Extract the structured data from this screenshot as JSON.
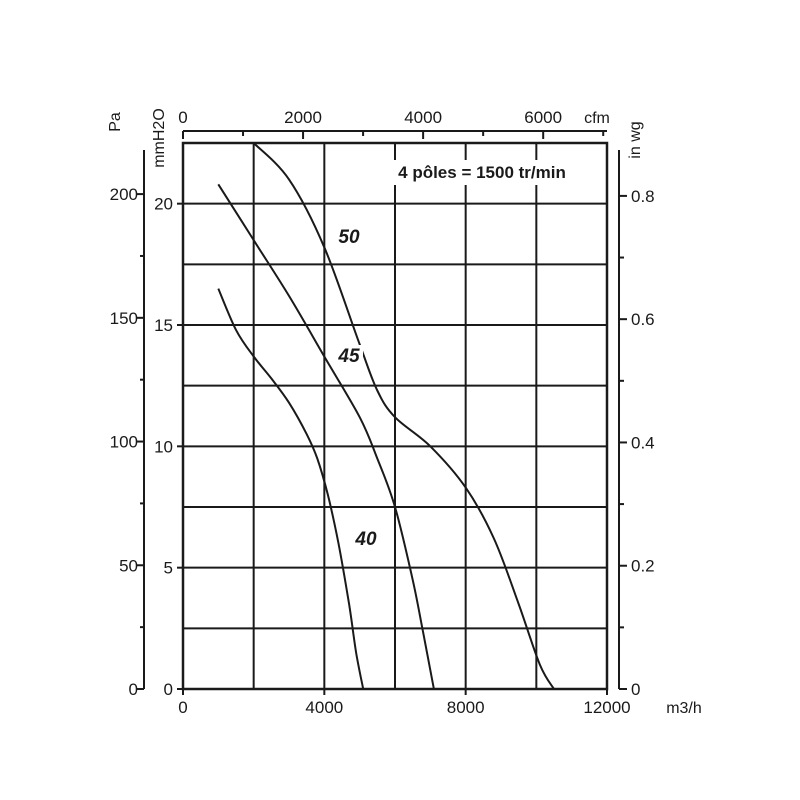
{
  "chart_data": {
    "type": "line",
    "annotation": "4 pôles = 1500 tr/min",
    "x_axis": {
      "unit": "m3/h",
      "range": [
        0,
        12000
      ],
      "ticks": [
        0,
        4000,
        8000,
        12000
      ],
      "tick_labels": [
        "0",
        "4000",
        "8000",
        "12000"
      ]
    },
    "x2_axis": {
      "unit": "cfm",
      "ticks": [
        0,
        2000,
        4000,
        6000
      ],
      "tick_labels": [
        "0",
        "2000",
        "4000",
        "6000"
      ]
    },
    "y_axis_mmh2o": {
      "unit": "mmH2O",
      "range": [
        0,
        22.5
      ],
      "ticks": [
        0,
        5,
        10,
        15,
        20
      ],
      "tick_labels": [
        "0",
        "5",
        "10",
        "15",
        "20"
      ]
    },
    "y_axis_pa": {
      "unit": "Pa",
      "ticks": [
        0,
        50,
        100,
        150,
        200
      ],
      "tick_labels": [
        "0",
        "50",
        "100",
        "150",
        "200"
      ]
    },
    "y_axis_inwg": {
      "unit": "in wg",
      "ticks": [
        0,
        0.2,
        0.4,
        0.6,
        0.8
      ],
      "tick_labels": [
        "0",
        "0.2",
        "0.4",
        "0.6",
        "0.8"
      ]
    },
    "grid": true,
    "series": [
      {
        "name": "40",
        "x": [
          1000,
          1500,
          2000,
          2500,
          3000,
          3500,
          3800,
          4100,
          4400,
          4700,
          4900,
          5100
        ],
        "y": [
          16.5,
          14.8,
          13.7,
          12.8,
          11.8,
          10.5,
          9.5,
          8.0,
          6.0,
          3.5,
          1.5,
          0
        ]
      },
      {
        "name": "45",
        "x": [
          1000,
          2000,
          3000,
          4000,
          5000,
          5500,
          6000,
          6500,
          6800,
          7100
        ],
        "y": [
          20.8,
          18.5,
          16.2,
          13.7,
          11.2,
          9.5,
          7.5,
          4.5,
          2.3,
          0
        ]
      },
      {
        "name": "50",
        "x": [
          2000,
          3000,
          4000,
          5000,
          5500,
          6000,
          7000,
          8000,
          8800,
          9500,
          10100,
          10500
        ],
        "y": [
          22.5,
          21.0,
          18.2,
          14.2,
          12.3,
          11.2,
          10.0,
          8.3,
          6.2,
          3.5,
          1.0,
          0
        ]
      }
    ]
  }
}
